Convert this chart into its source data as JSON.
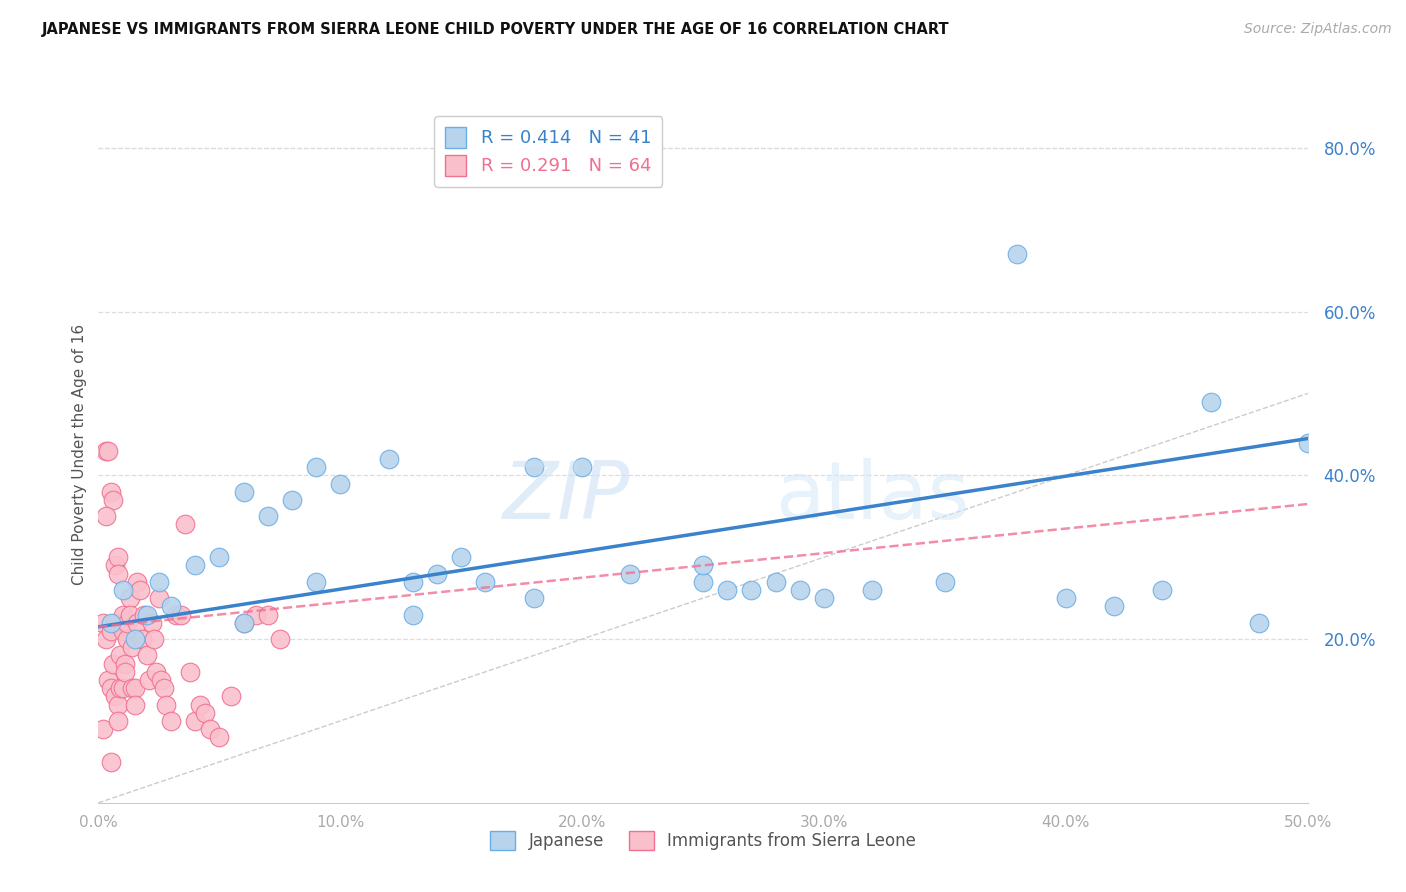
{
  "title": "JAPANESE VS IMMIGRANTS FROM SIERRA LEONE CHILD POVERTY UNDER THE AGE OF 16 CORRELATION CHART",
  "source": "Source: ZipAtlas.com",
  "ylabel": "Child Poverty Under the Age of 16",
  "x_min": 0.0,
  "x_max": 0.5,
  "y_min": 0.0,
  "y_max": 0.85,
  "x_ticks": [
    0.0,
    0.1,
    0.2,
    0.3,
    0.4,
    0.5
  ],
  "x_tick_labels": [
    "0.0%",
    "10.0%",
    "20.0%",
    "30.0%",
    "40.0%",
    "50.0%"
  ],
  "y_ticks": [
    0.2,
    0.4,
    0.6,
    0.8
  ],
  "y_tick_labels": [
    "20.0%",
    "40.0%",
    "60.0%",
    "80.0%"
  ],
  "blue_scatter_face": "#b8d4ec",
  "blue_scatter_edge": "#6aaee8",
  "pink_scatter_face": "#f9c0cc",
  "pink_scatter_edge": "#f07090",
  "blue_line_color": "#3a82cc",
  "diagonal_color": "#cccccc",
  "R_blue": 0.414,
  "N_blue": 41,
  "R_pink": 0.291,
  "N_pink": 64,
  "legend_label_blue": "Japanese",
  "legend_label_pink": "Immigrants from Sierra Leone",
  "watermark_zip": "ZIP",
  "watermark_atlas": "atlas",
  "blue_line_intercept": 0.215,
  "blue_line_slope": 0.46,
  "pink_line_intercept": 0.215,
  "pink_line_slope": 0.3,
  "japanese_x": [
    0.005,
    0.01,
    0.015,
    0.02,
    0.025,
    0.03,
    0.04,
    0.05,
    0.06,
    0.07,
    0.08,
    0.09,
    0.1,
    0.12,
    0.13,
    0.14,
    0.15,
    0.16,
    0.18,
    0.2,
    0.22,
    0.25,
    0.26,
    0.27,
    0.28,
    0.29,
    0.3,
    0.32,
    0.35,
    0.38,
    0.4,
    0.42,
    0.44,
    0.46,
    0.48,
    0.5,
    0.06,
    0.09,
    0.13,
    0.18,
    0.25
  ],
  "japanese_y": [
    0.22,
    0.26,
    0.2,
    0.23,
    0.27,
    0.24,
    0.29,
    0.3,
    0.38,
    0.35,
    0.37,
    0.41,
    0.39,
    0.42,
    0.27,
    0.28,
    0.3,
    0.27,
    0.41,
    0.41,
    0.28,
    0.27,
    0.26,
    0.26,
    0.27,
    0.26,
    0.25,
    0.26,
    0.27,
    0.67,
    0.25,
    0.24,
    0.26,
    0.49,
    0.22,
    0.44,
    0.22,
    0.27,
    0.23,
    0.25,
    0.29
  ],
  "sierra_leone_x": [
    0.002,
    0.003,
    0.003,
    0.004,
    0.004,
    0.005,
    0.005,
    0.005,
    0.006,
    0.006,
    0.007,
    0.007,
    0.007,
    0.008,
    0.008,
    0.008,
    0.009,
    0.009,
    0.01,
    0.01,
    0.01,
    0.011,
    0.011,
    0.012,
    0.012,
    0.013,
    0.013,
    0.014,
    0.014,
    0.015,
    0.015,
    0.016,
    0.016,
    0.017,
    0.018,
    0.019,
    0.02,
    0.021,
    0.022,
    0.023,
    0.024,
    0.025,
    0.026,
    0.027,
    0.028,
    0.03,
    0.032,
    0.034,
    0.036,
    0.038,
    0.04,
    0.042,
    0.044,
    0.046,
    0.05,
    0.055,
    0.06,
    0.065,
    0.07,
    0.075,
    0.002,
    0.003,
    0.005,
    0.008
  ],
  "sierra_leone_y": [
    0.22,
    0.43,
    0.2,
    0.43,
    0.15,
    0.21,
    0.14,
    0.38,
    0.37,
    0.17,
    0.29,
    0.13,
    0.22,
    0.3,
    0.28,
    0.12,
    0.18,
    0.14,
    0.23,
    0.14,
    0.21,
    0.17,
    0.16,
    0.2,
    0.22,
    0.25,
    0.23,
    0.19,
    0.14,
    0.14,
    0.12,
    0.27,
    0.22,
    0.26,
    0.2,
    0.23,
    0.18,
    0.15,
    0.22,
    0.2,
    0.16,
    0.25,
    0.15,
    0.14,
    0.12,
    0.1,
    0.23,
    0.23,
    0.34,
    0.16,
    0.1,
    0.12,
    0.11,
    0.09,
    0.08,
    0.13,
    0.22,
    0.23,
    0.23,
    0.2,
    0.09,
    0.35,
    0.05,
    0.1
  ]
}
